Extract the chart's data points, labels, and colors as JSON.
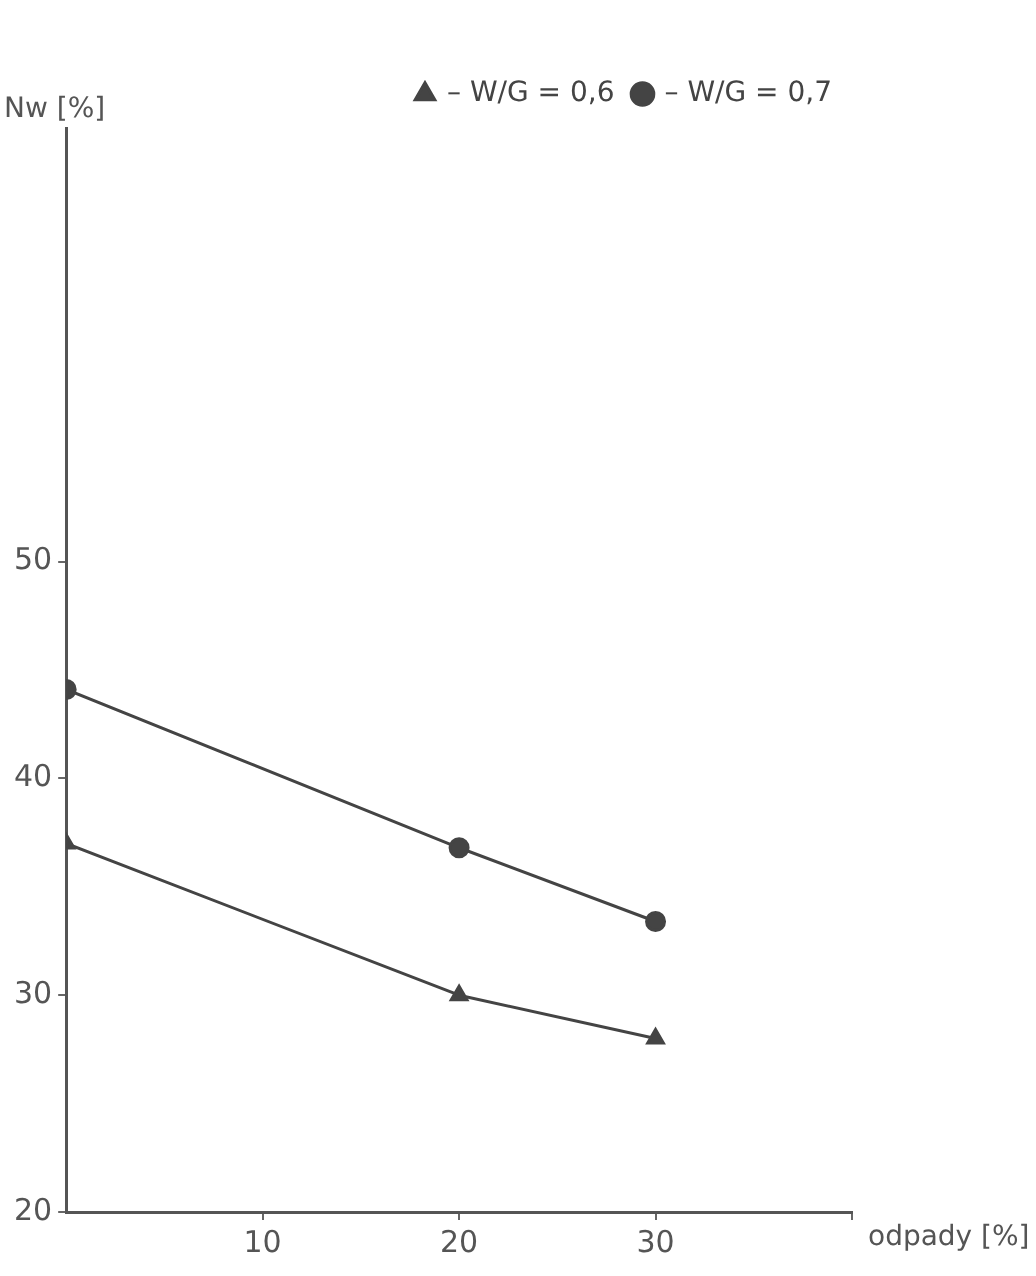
{
  "chart_data": {
    "type": "line",
    "xlabel": "odpady [%]",
    "ylabel": "Nw [%]",
    "xlim": [
      0,
      40
    ],
    "xticks": [
      10,
      20,
      30,
      {
        "value": 40,
        "label": null
      }
    ],
    "ylim": [
      20,
      70
    ],
    "yticks": [
      20,
      30,
      40,
      50
    ],
    "grid": false,
    "legend": "top right",
    "line_style": "solid",
    "series": [
      {
        "name": "– W/G = 0,6",
        "color": "#444444",
        "marker": "triangle",
        "x": [
          0,
          20,
          30
        ],
        "values": [
          37,
          30,
          28
        ]
      },
      {
        "name": "– W/G = 0,7",
        "color": "#444444",
        "marker": "circle",
        "x": [
          0,
          20,
          30
        ],
        "values": [
          44.1,
          36.8,
          33.4
        ]
      }
    ]
  }
}
